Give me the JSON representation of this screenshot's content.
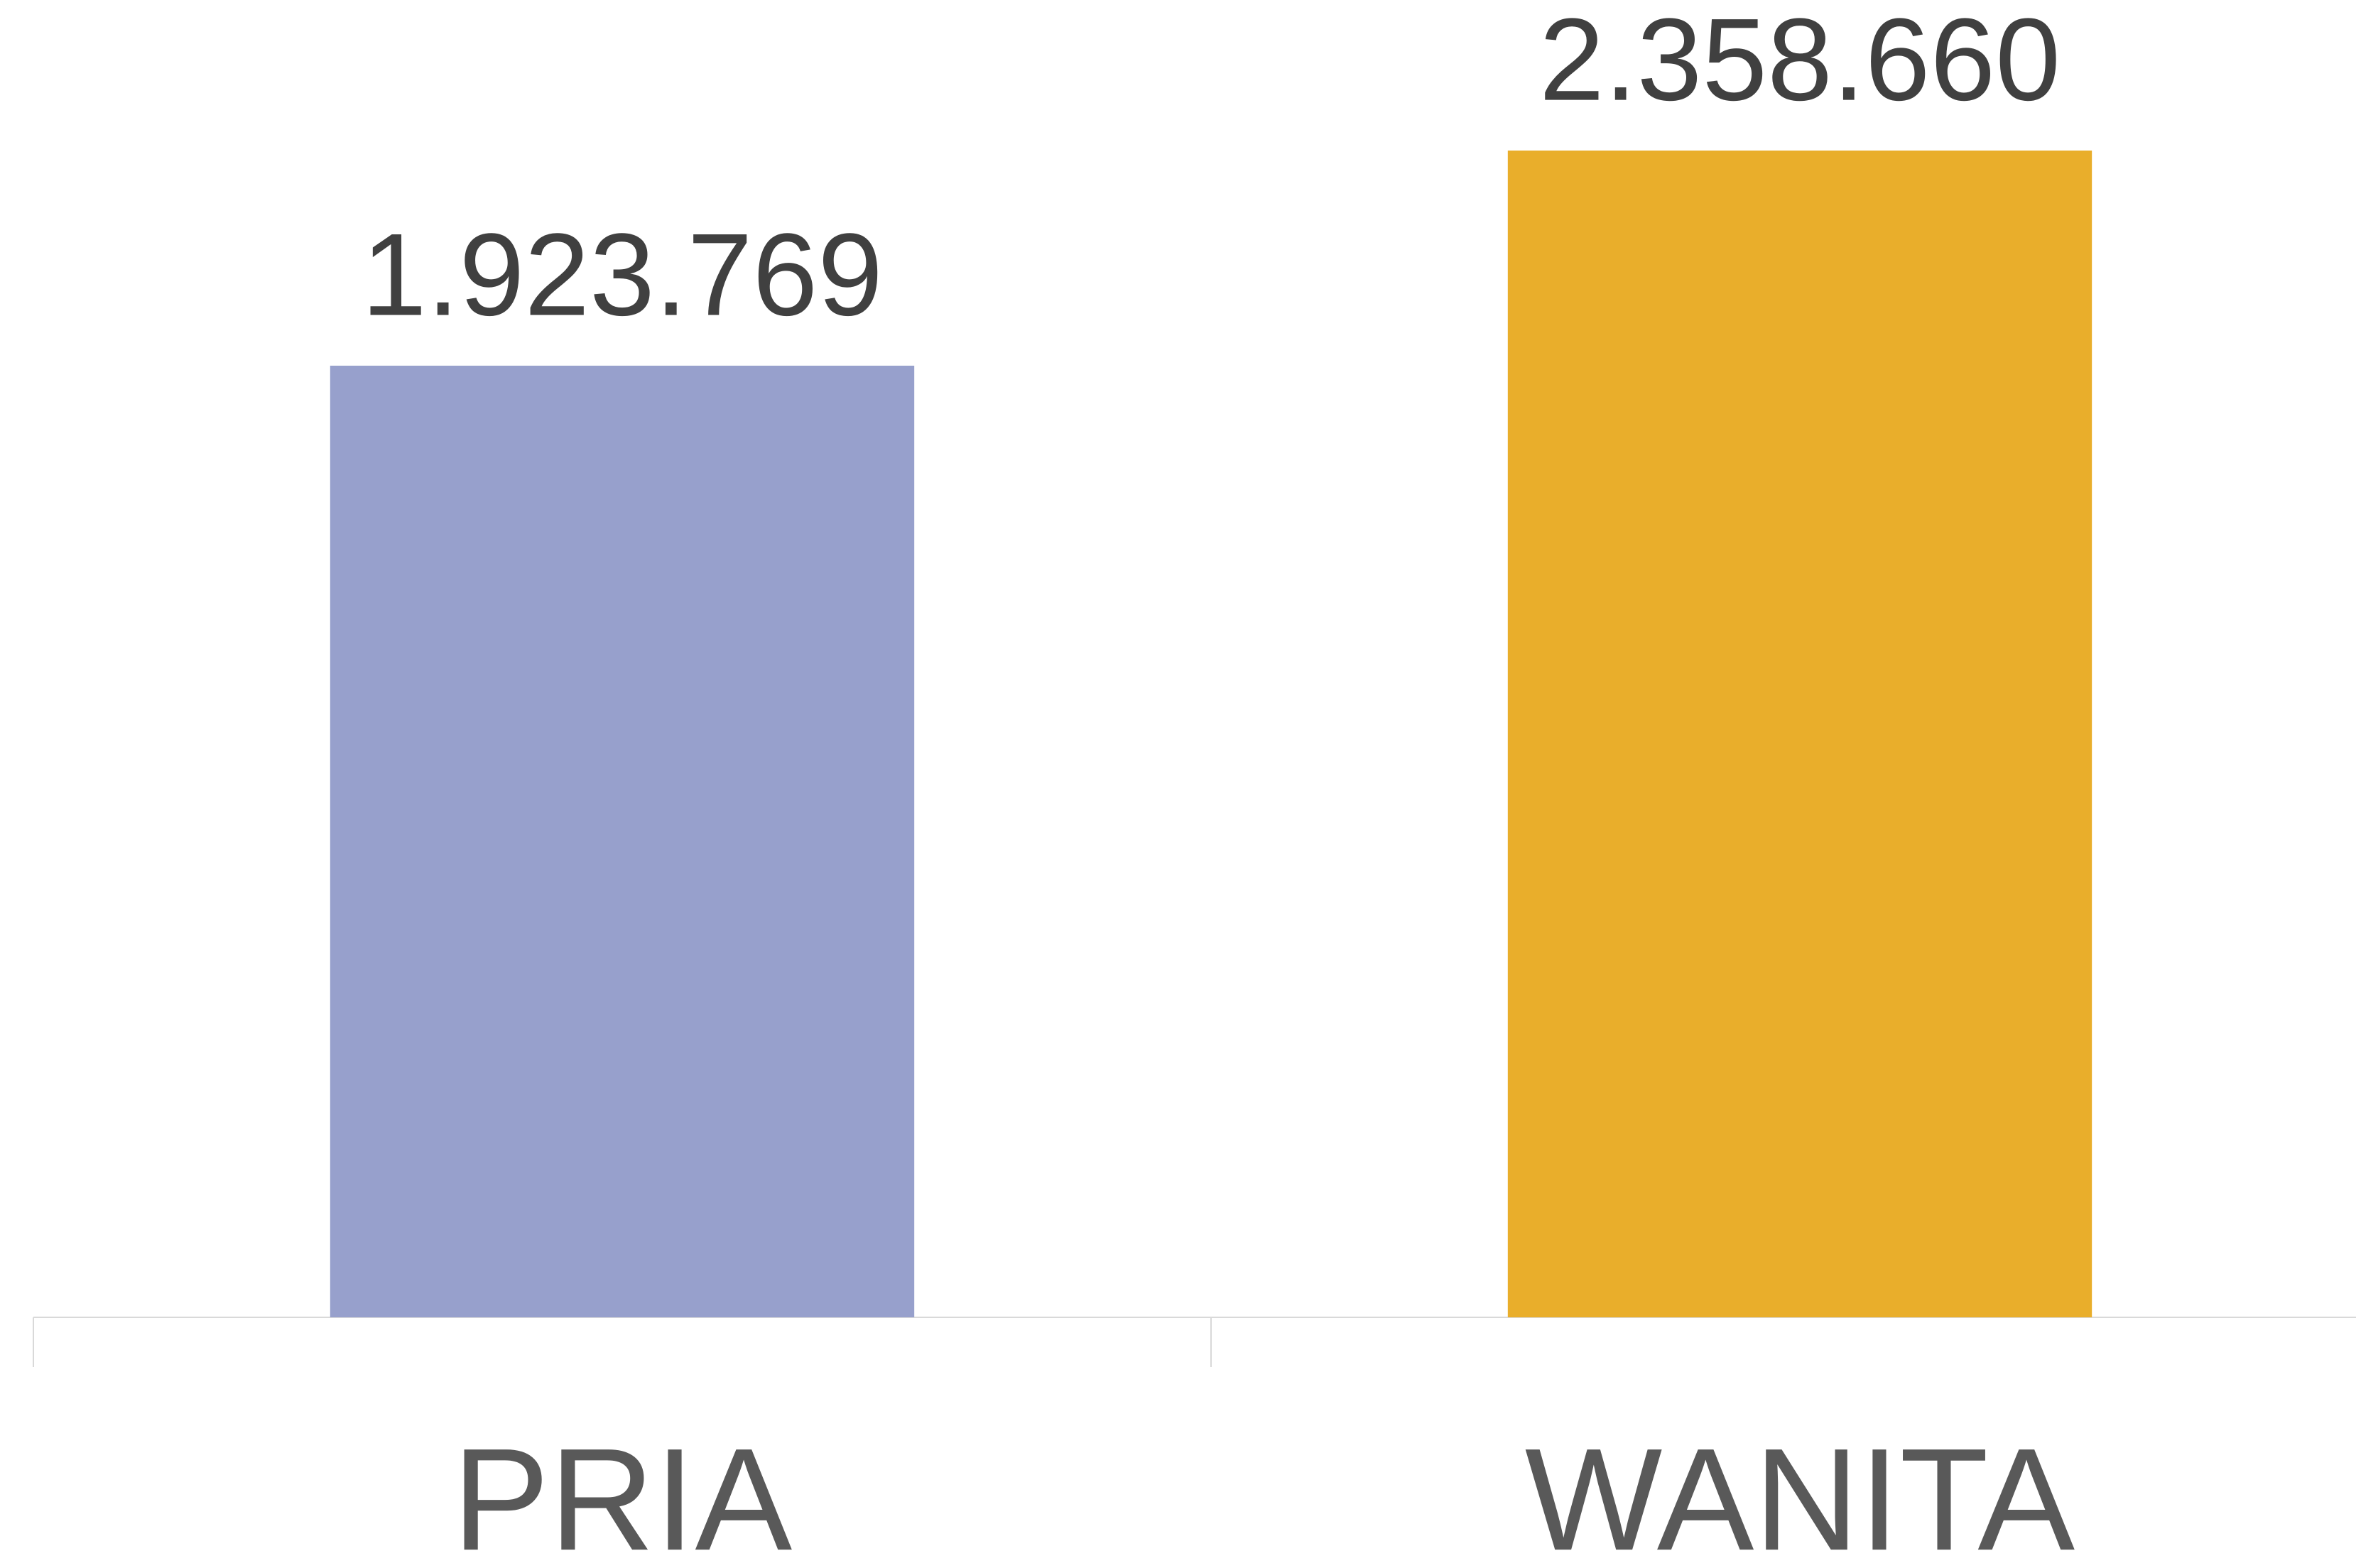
{
  "chart_data": {
    "type": "bar",
    "categories": [
      "PRIA",
      "WANITA"
    ],
    "series": [
      {
        "name": null,
        "colors": [
          "#97a0cc",
          "#e9ae2b"
        ],
        "values": [
          1923769,
          2358660
        ],
        "value_labels": [
          "1.923.769",
          "2.358.660"
        ]
      }
    ],
    "grid": false
  }
}
